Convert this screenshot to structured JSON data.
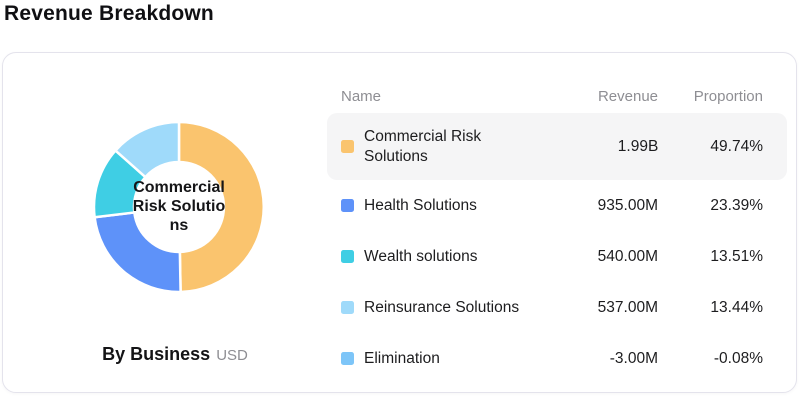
{
  "page": {
    "title": "Revenue Breakdown"
  },
  "donut": {
    "center_label": "Commercial Risk Solutions"
  },
  "footer": {
    "group_label": "By Business",
    "unit": "USD"
  },
  "table": {
    "headers": {
      "name": "Name",
      "revenue": "Revenue",
      "proportion": "Proportion"
    },
    "rows": [
      {
        "name": "Commercial Risk Solutions",
        "revenue": "1.99B",
        "proportion": "49.74%",
        "color": "#FAC46E",
        "active": true
      },
      {
        "name": "Health Solutions",
        "revenue": "935.00M",
        "proportion": "23.39%",
        "color": "#5E92F9",
        "active": false
      },
      {
        "name": "Wealth solutions",
        "revenue": "540.00M",
        "proportion": "13.51%",
        "color": "#3FCEE4",
        "active": false
      },
      {
        "name": "Reinsurance Solutions",
        "revenue": "537.00M",
        "proportion": "13.44%",
        "color": "#9FDAFA",
        "active": false
      },
      {
        "name": "Elimination",
        "revenue": "-3.00M",
        "proportion": "-0.08%",
        "color": "#7DC5F8",
        "active": false
      }
    ]
  },
  "chart_data": {
    "type": "pie",
    "donut": true,
    "title": "Revenue Breakdown",
    "group_label": "By Business",
    "unit": "USD",
    "legend_position": "right",
    "categories": [
      "Commercial Risk Solutions",
      "Health Solutions",
      "Wealth solutions",
      "Reinsurance Solutions",
      "Elimination"
    ],
    "values_millions": [
      1990,
      935,
      540,
      537,
      -3
    ],
    "values_display": [
      "1.99B",
      "935.00M",
      "540.00M",
      "537.00M",
      "-3.00M"
    ],
    "proportions_pct": [
      49.74,
      23.39,
      13.51,
      13.44,
      -0.08
    ],
    "colors": [
      "#FAC46E",
      "#5E92F9",
      "#3FCEE4",
      "#9FDAFA",
      "#7DC5F8"
    ],
    "center_label": "Commercial Risk Solutions"
  }
}
